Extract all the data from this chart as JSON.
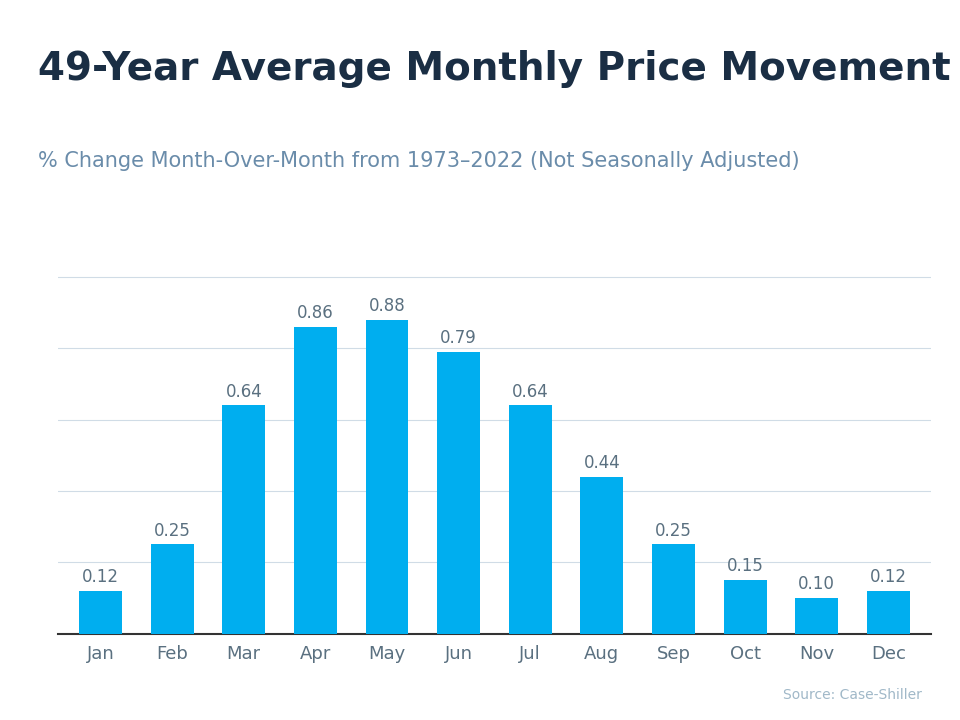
{
  "title": "49-Year Average Monthly Price Movement",
  "subtitle": "% Change Month-Over-Month from 1973–2022 (Not Seasonally Adjusted)",
  "source": "Source: Case-Shiller",
  "categories": [
    "Jan",
    "Feb",
    "Mar",
    "Apr",
    "May",
    "Jun",
    "Jul",
    "Aug",
    "Sep",
    "Oct",
    "Nov",
    "Dec"
  ],
  "values": [
    0.12,
    0.25,
    0.64,
    0.86,
    0.88,
    0.79,
    0.64,
    0.44,
    0.25,
    0.15,
    0.1,
    0.12
  ],
  "bar_color": "#00AEEF",
  "title_color": "#1a2e44",
  "subtitle_color": "#6a8caa",
  "tick_label_color": "#5a7080",
  "source_color": "#a0b8c8",
  "background_color": "#ffffff",
  "header_bar_color": "#00AEEF",
  "ylim": [
    0,
    1.05
  ],
  "grid_color": "#d0dce6",
  "value_label_color": "#5a7080",
  "title_fontsize": 28,
  "subtitle_fontsize": 15,
  "value_fontsize": 12,
  "tick_fontsize": 13,
  "header_bar_height": 0.018
}
